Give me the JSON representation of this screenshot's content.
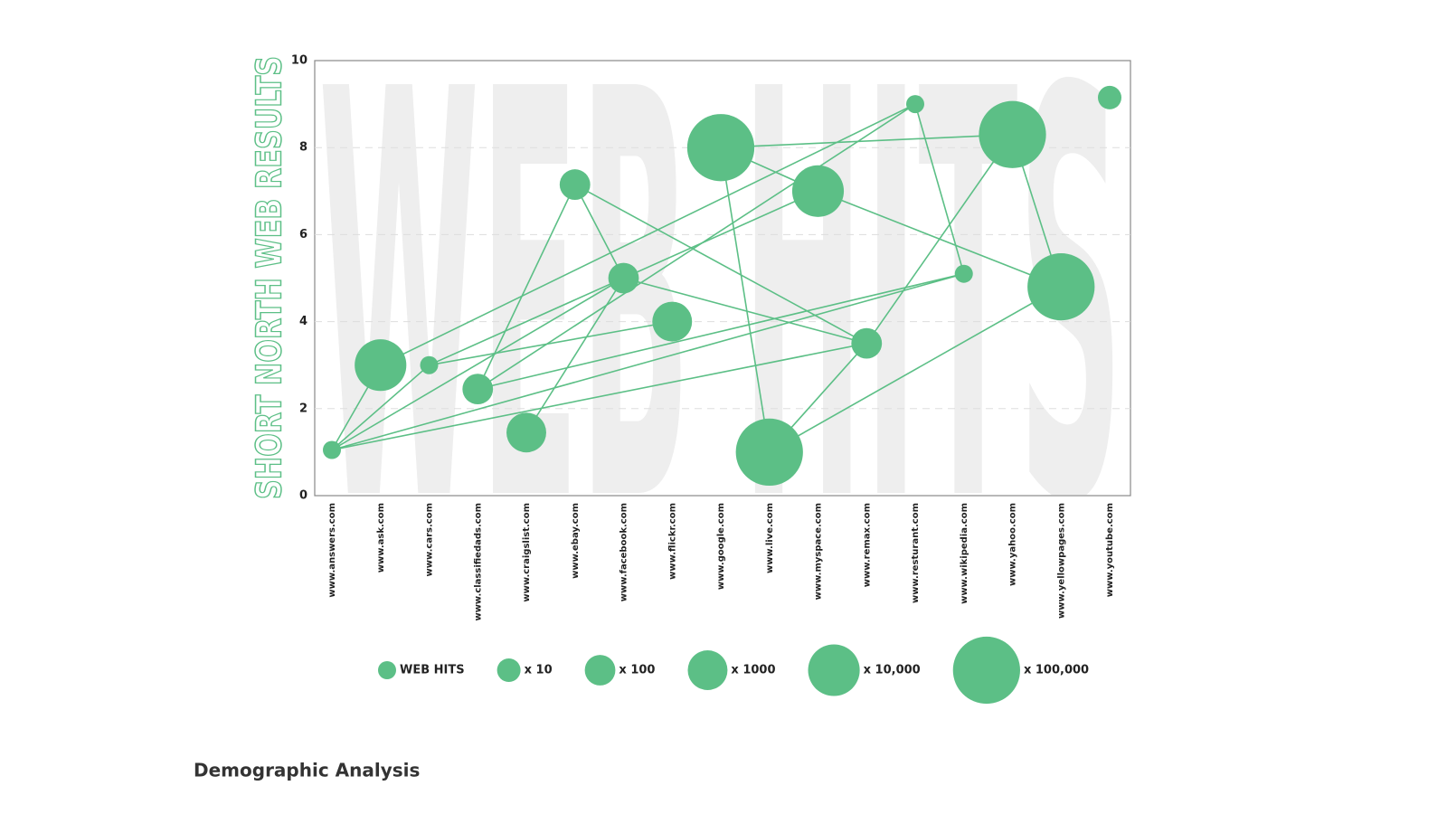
{
  "chart_data": {
    "type": "bubble",
    "watermark": "WEB HITS",
    "ylabel": "SHORT NORTH WEB RESULTS",
    "caption": "Demographic Analysis",
    "categories": [
      "www.answers.com",
      "www.ask.com",
      "www.cars.com",
      "www.classifiedads.com",
      "www.craigslist.com",
      "www.ebay.com",
      "www.facebook.com",
      "www.flickr.com",
      "www.google.com",
      "www.live.com",
      "www.myspace.com",
      "www.remax.com",
      "www.resturant.com",
      "www.wikipedia.com",
      "www.yahoo.com",
      "www.yellowpages.com",
      "www.youtube.com"
    ],
    "values": [
      1.05,
      3.0,
      3.0,
      2.45,
      1.45,
      7.15,
      5.0,
      4.0,
      8.0,
      1.0,
      7.0,
      3.5,
      9.0,
      5.1,
      8.3,
      4.8,
      9.15
    ],
    "sizes": [
      1,
      10000,
      1,
      100,
      1000,
      100,
      100,
      1000,
      100000,
      100000,
      10000,
      100,
      1,
      1,
      100000,
      100000,
      10
    ],
    "links": [
      [
        0,
        1
      ],
      [
        0,
        2
      ],
      [
        0,
        6
      ],
      [
        0,
        13
      ],
      [
        0,
        11
      ],
      [
        1,
        12
      ],
      [
        2,
        7
      ],
      [
        2,
        10
      ],
      [
        3,
        5
      ],
      [
        3,
        12
      ],
      [
        3,
        13
      ],
      [
        4,
        6
      ],
      [
        5,
        6
      ],
      [
        5,
        11
      ],
      [
        6,
        11
      ],
      [
        8,
        14
      ],
      [
        8,
        10
      ],
      [
        8,
        9
      ],
      [
        10,
        15
      ],
      [
        12,
        13
      ],
      [
        9,
        11
      ],
      [
        9,
        15
      ],
      [
        14,
        15
      ],
      [
        11,
        14
      ]
    ],
    "color": "#5cbf86",
    "ylim": [
      0,
      10
    ],
    "yticks": [
      0,
      2,
      4,
      6,
      8,
      10
    ],
    "grid": true,
    "legend": [
      {
        "label": "WEB HITS",
        "size": 1
      },
      {
        "label": "x 10",
        "size": 10
      },
      {
        "label": "x 100",
        "size": 100
      },
      {
        "label": "x 1000",
        "size": 1000
      },
      {
        "label": "x 10,000",
        "size": 10000
      },
      {
        "label": "x 100,000",
        "size": 100000
      }
    ]
  }
}
